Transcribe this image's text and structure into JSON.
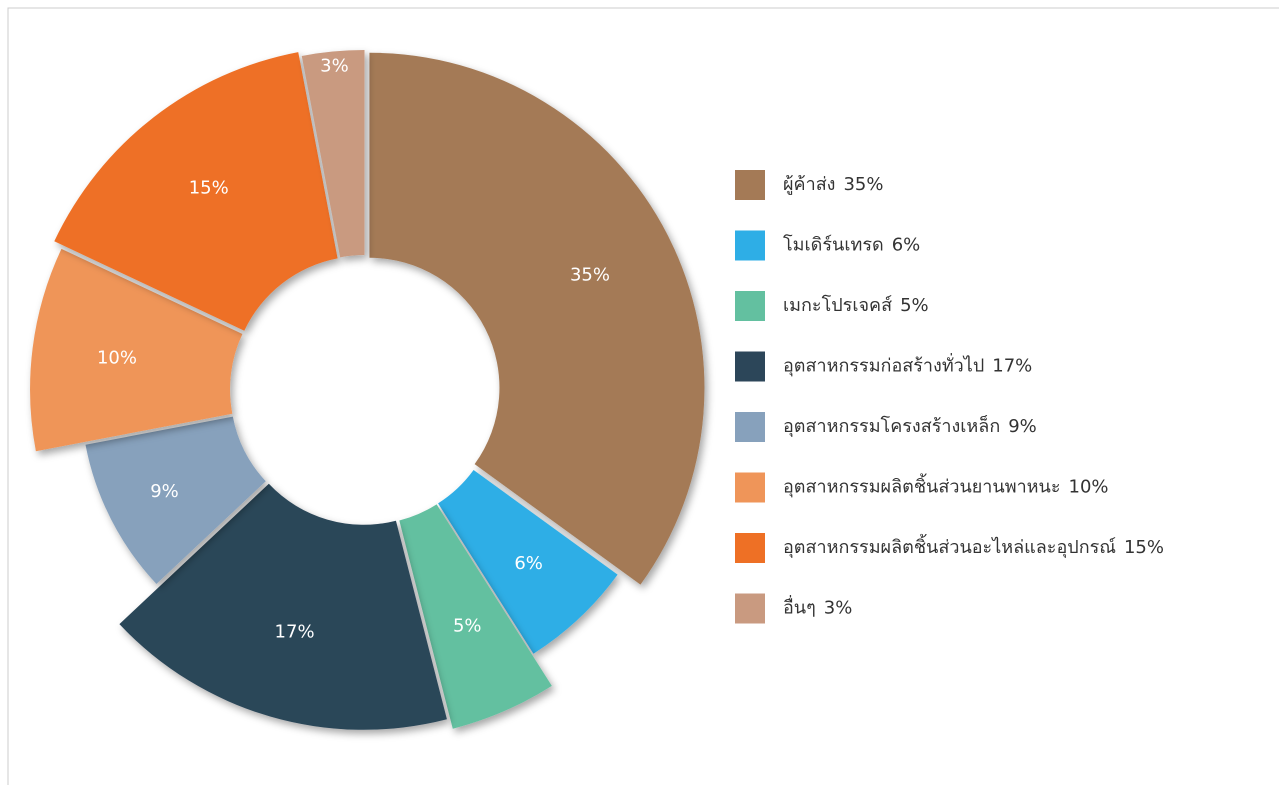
{
  "chart_data": {
    "type": "donut",
    "categories": [
      "ผู้ค้าส่ง",
      "โมเดิร์นเทรด",
      "เมกะโปรเจคส์",
      "อุตสาหกรรมก่อสร้างทั่วไป",
      "อุตสาหกรรมโครงสร้างเหล็ก",
      "อุตสาหกรรมผลิตชิ้นส่วนยานพาหนะ",
      "อุตสาหกรรมผลิตชิ้นส่วนอะไหล่และอุปกรณ์",
      "อื่นๆ"
    ],
    "values": [
      35,
      6,
      5,
      17,
      9,
      10,
      15,
      3
    ],
    "value_labels": [
      "35%",
      "6%",
      "5%",
      "17%",
      "9%",
      "10%",
      "15%",
      "3%"
    ],
    "colors": [
      "#a47a56",
      "#2eaee6",
      "#63c0a0",
      "#2c4659",
      "#87a1bc",
      "#ef9559",
      "#ee7025",
      "#c99a80"
    ],
    "legend": "right"
  }
}
